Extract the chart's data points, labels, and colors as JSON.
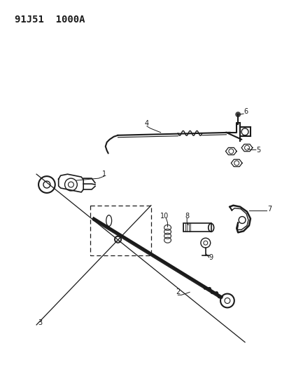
{
  "title": "91J51  1000A",
  "bg_color": "#ffffff",
  "line_color": "#1a1a1a",
  "figsize": [
    4.14,
    5.33
  ],
  "dpi": 100
}
